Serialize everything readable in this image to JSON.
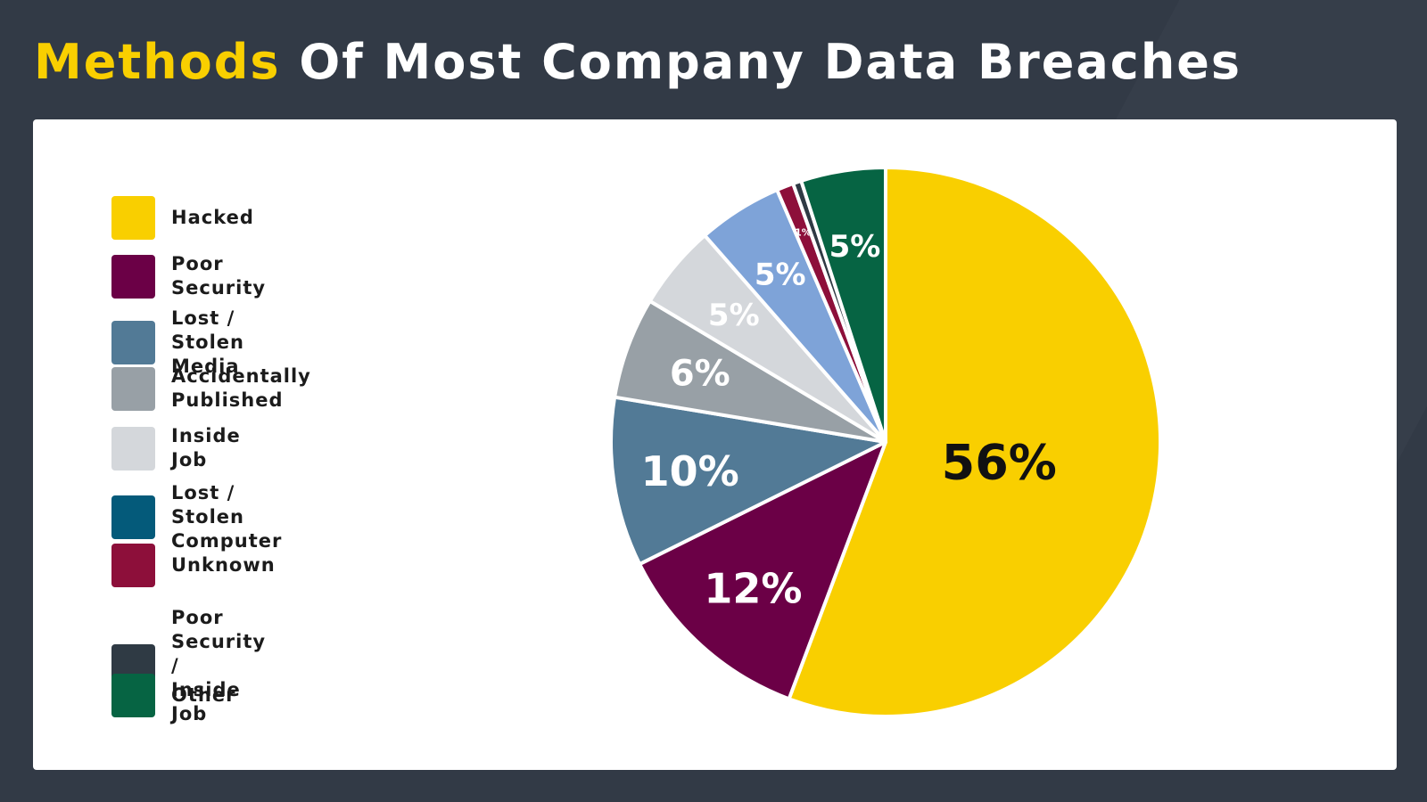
{
  "title": {
    "highlight": "Methods",
    "rest": " Of Most Company Data Breaches"
  },
  "colors": {
    "background": "#323a46",
    "highlight": "#f9cf00",
    "card": "#ffffff"
  },
  "chart_data": {
    "type": "pie",
    "title": "Methods Of Most Company Data Breaches",
    "legend_position": "left",
    "legend": [
      {
        "label": "Hacked",
        "color": "#f9cf00"
      },
      {
        "label": "Poor Security",
        "color": "#6b0046"
      },
      {
        "label": "Lost / Stolen Media",
        "color": "#527a96"
      },
      {
        "label": "Accidentally Published",
        "color": "#98a0a6"
      },
      {
        "label": "Inside Job",
        "color": "#d4d7db"
      },
      {
        "label": "Lost / Stolen Computer",
        "color": "#045a7a"
      },
      {
        "label": "Unknown",
        "color": "#8d0f3a"
      },
      {
        "label": "Poor Security /\nInside Job",
        "color": "#2f3a44"
      },
      {
        "label": "Other",
        "color": "#066443"
      }
    ],
    "slices": [
      {
        "value": 56,
        "label": "56%",
        "color": "#f9cf00",
        "label_color": "#111111"
      },
      {
        "value": 12,
        "label": "12%",
        "color": "#6b0046",
        "label_color": "#ffffff"
      },
      {
        "value": 10,
        "label": "10%",
        "color": "#527a96",
        "label_color": "#ffffff"
      },
      {
        "value": 6,
        "label": "6%",
        "color": "#98a0a6",
        "label_color": "#ffffff"
      },
      {
        "value": 5,
        "label": "5%",
        "color": "#d4d7db",
        "label_color": "#ffffff"
      },
      {
        "value": 5,
        "label": "5%",
        "color": "#7ea3d8",
        "label_color": "#ffffff"
      },
      {
        "value": 1,
        "label": "1%",
        "color": "#8d0f3a",
        "label_color": "#ffffff"
      },
      {
        "value": 0.5,
        "label": "",
        "color": "#2f3a44",
        "label_color": "#ffffff"
      },
      {
        "value": 5,
        "label": "5%",
        "color": "#066443",
        "label_color": "#ffffff"
      }
    ]
  }
}
